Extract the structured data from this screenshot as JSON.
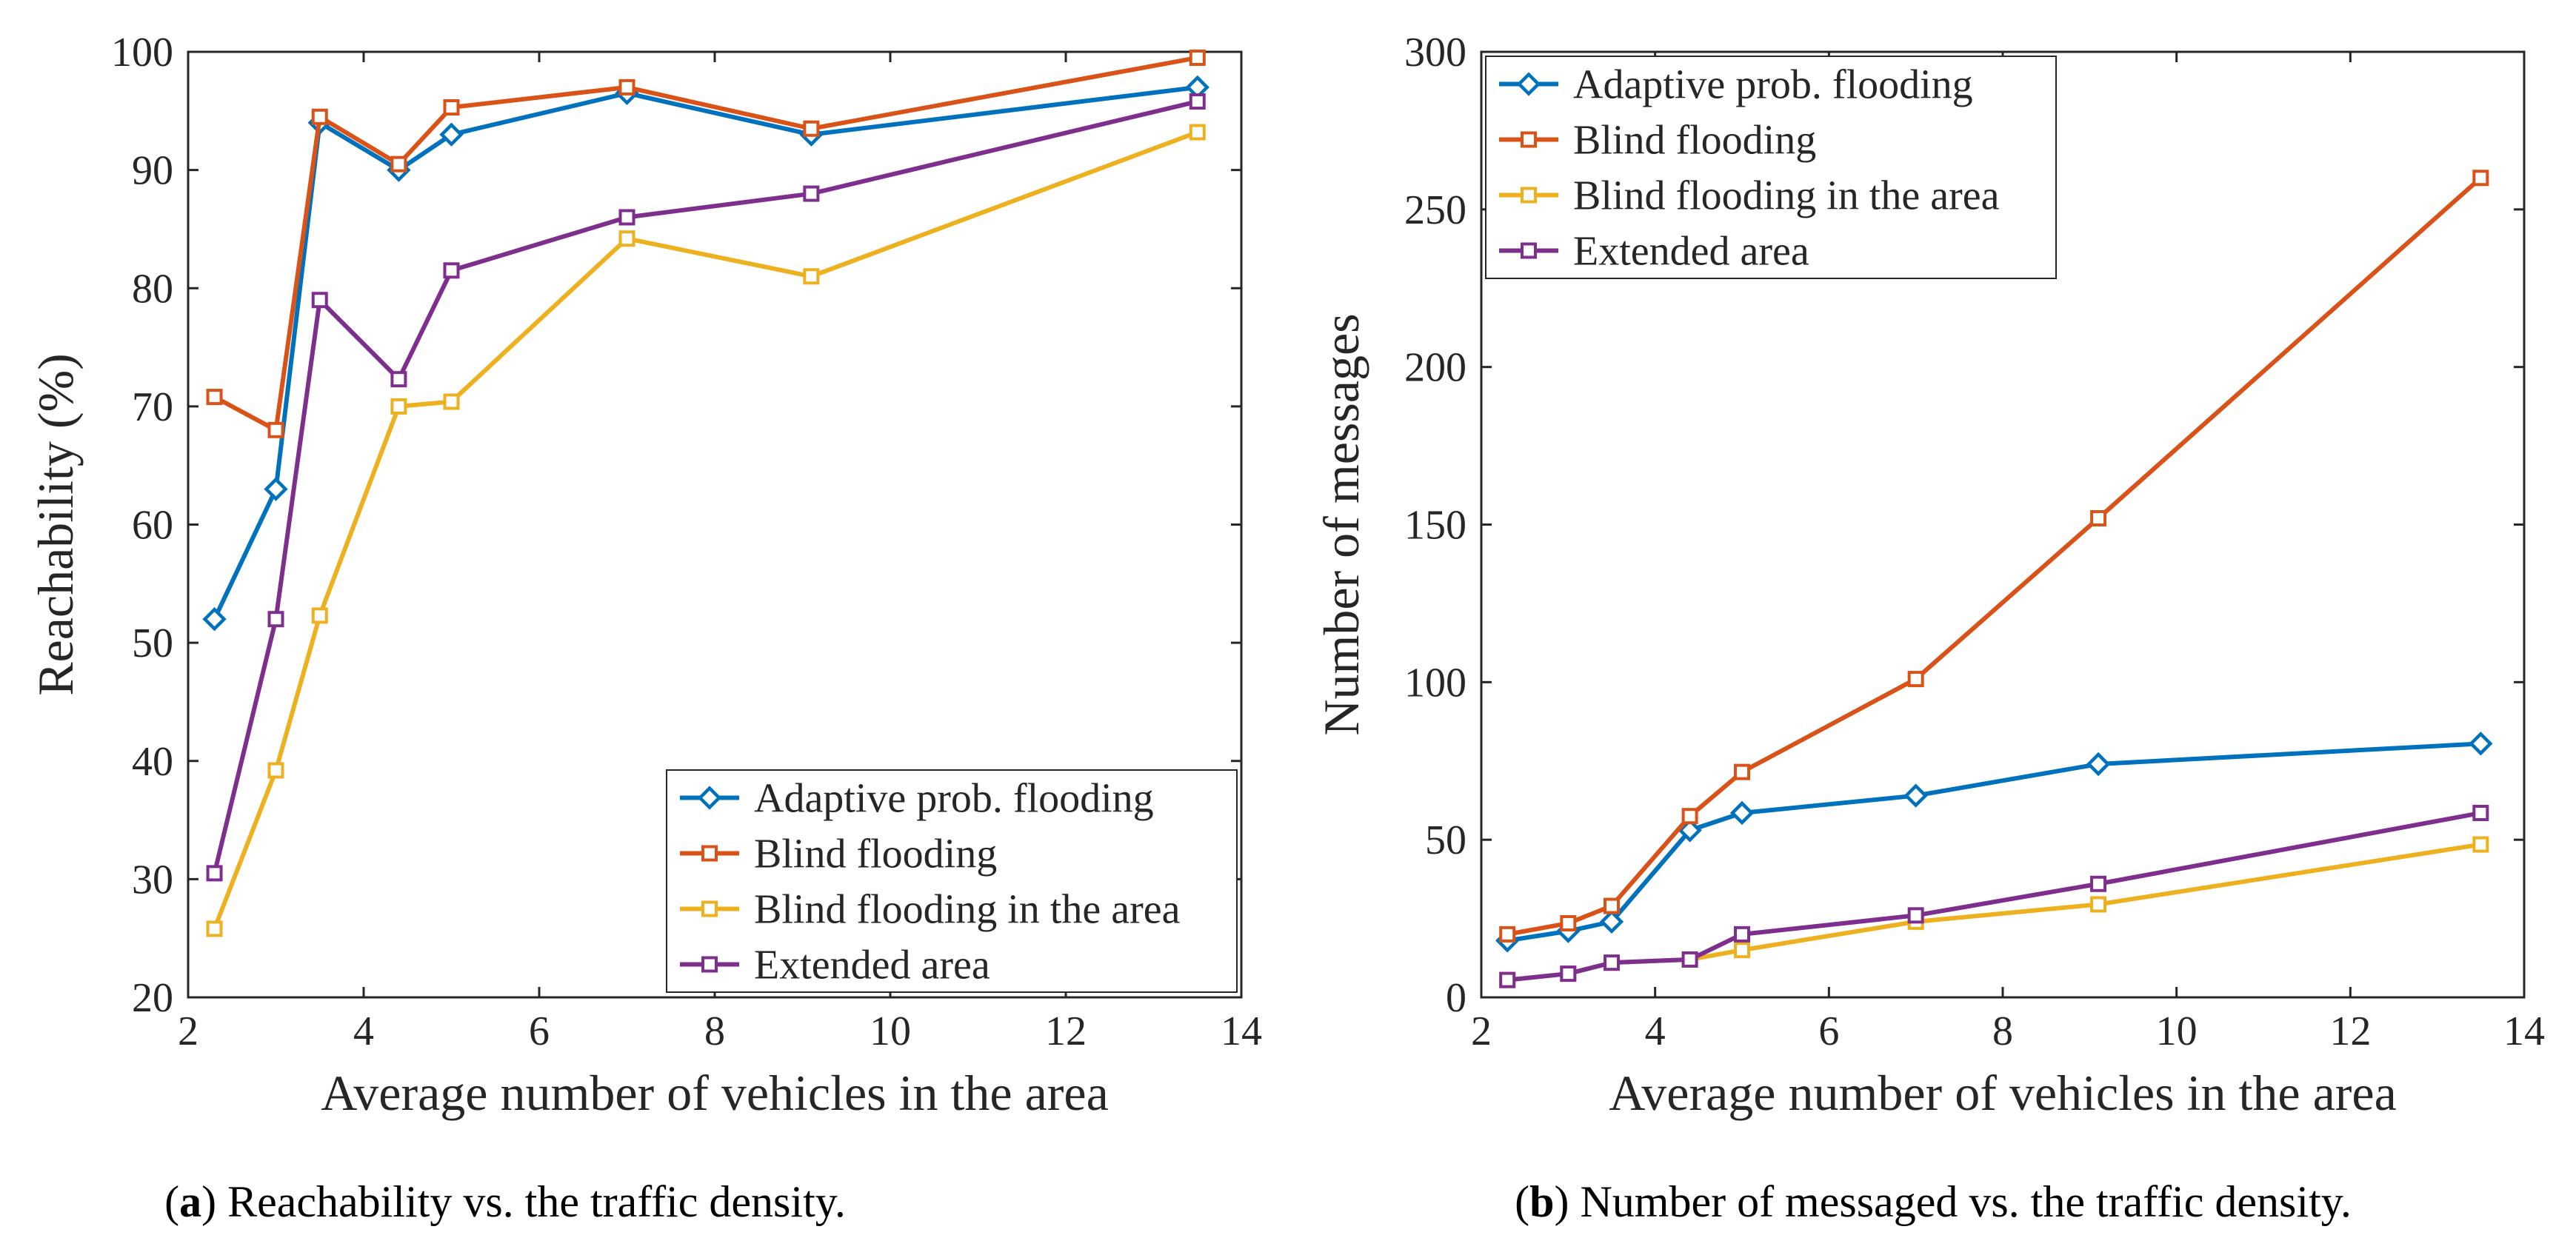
{
  "chart_data": [
    {
      "type": "line",
      "panel_letter": "a",
      "caption": ") Reachability vs. the traffic density.",
      "xlabel": "Average number of vehicles in the area",
      "ylabel": "Reachability (%)",
      "xlim": [
        2,
        14
      ],
      "ylim": [
        20,
        100
      ],
      "xticks": [
        2,
        4,
        6,
        8,
        10,
        12,
        14
      ],
      "yticks": [
        20,
        30,
        40,
        50,
        60,
        70,
        80,
        90,
        100
      ],
      "grid": false,
      "legend_position": "bottom-right",
      "x": [
        2.3,
        3.0,
        3.5,
        4.4,
        5.0,
        7.0,
        9.1,
        13.5
      ],
      "series": [
        {
          "name": "Adaptive prob. flooding",
          "color": "#0072BD",
          "marker": "diamond",
          "values": [
            52,
            63,
            94,
            90,
            93,
            96.5,
            93,
            97
          ]
        },
        {
          "name": "Blind flooding",
          "color": "#D95319",
          "marker": "square",
          "values": [
            70.8,
            68,
            94.5,
            90.5,
            95.3,
            97,
            93.5,
            99.5
          ]
        },
        {
          "name": "Blind flooding in the area",
          "color": "#EDB120",
          "marker": "square",
          "values": [
            25.8,
            39.2,
            52.3,
            70,
            70.4,
            84.2,
            81,
            93.2
          ]
        },
        {
          "name": "Extended area",
          "color": "#7E2F8E",
          "marker": "square",
          "values": [
            30.5,
            52,
            79,
            72.3,
            81.5,
            86,
            88,
            95.8
          ]
        }
      ]
    },
    {
      "type": "line",
      "panel_letter": "b",
      "caption": ") Number of messaged vs. the traffic density.",
      "xlabel": "Average number of vehicles in the area",
      "ylabel": "Number of messages",
      "xlim": [
        2,
        14
      ],
      "ylim": [
        0,
        300
      ],
      "xticks": [
        2,
        4,
        6,
        8,
        10,
        12,
        14
      ],
      "yticks": [
        0,
        50,
        100,
        150,
        200,
        250,
        300
      ],
      "grid": false,
      "legend_position": "top-left",
      "x": [
        2.3,
        3.0,
        3.5,
        4.4,
        5.0,
        7.0,
        9.1,
        13.5
      ],
      "series": [
        {
          "name": "Adaptive prob. flooding",
          "color": "#0072BD",
          "marker": "diamond",
          "values": [
            18,
            21,
            24,
            53,
            58.5,
            64,
            74,
            80.5
          ]
        },
        {
          "name": "Blind flooding",
          "color": "#D95319",
          "marker": "square",
          "values": [
            20,
            23.5,
            29,
            57.5,
            71.5,
            101,
            152,
            260
          ]
        },
        {
          "name": "Blind flooding in the area",
          "color": "#EDB120",
          "marker": "square",
          "values": [
            5.5,
            7.5,
            11,
            12,
            15,
            24,
            29.5,
            48.5
          ]
        },
        {
          "name": "Extended area",
          "color": "#7E2F8E",
          "marker": "square",
          "values": [
            5.5,
            7.5,
            11,
            12,
            20,
            26,
            36,
            58.5
          ]
        }
      ]
    }
  ]
}
